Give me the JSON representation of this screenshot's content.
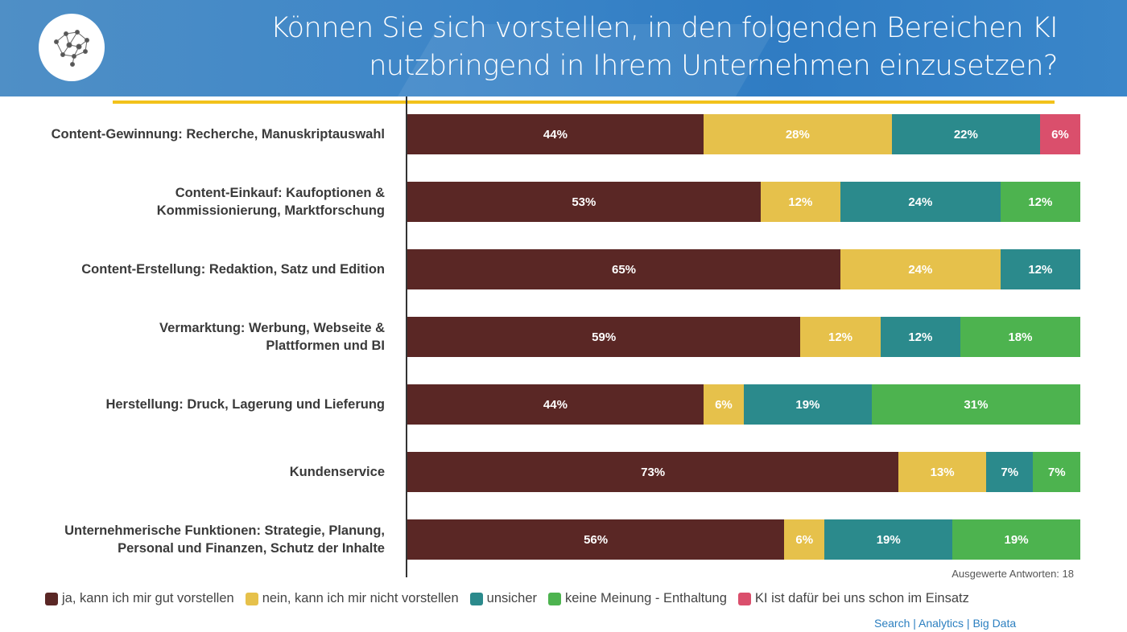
{
  "header": {
    "title_line1": "Können Sie sich vorstellen, in den folgenden Bereichen KI",
    "title_line2": "nutzbringend in Ihrem Unternehmen einzusetzen?",
    "logo": "brain-network-logo"
  },
  "chart_data": {
    "type": "bar",
    "orientation": "horizontal-stacked-100",
    "title": "Können Sie sich vorstellen, in den folgenden Bereichen KI nutzbringend in Ihrem Unternehmen einzusetzen?",
    "categories": [
      [
        "Content-Gewinnung: Recherche, Manuskriptauswahl"
      ],
      [
        "Content-Einkauf: Kaufoptionen &",
        "Kommissionierung, Marktforschung"
      ],
      [
        "Content-Erstellung: Redaktion, Satz und Edition"
      ],
      [
        "Vermarktung: Werbung, Webseite &",
        "Plattformen und BI"
      ],
      [
        "Herstellung: Druck, Lagerung und Lieferung"
      ],
      [
        "Kundenservice"
      ],
      [
        "Unternehmerische Funktionen: Strategie, Planung,",
        "Personal und Finanzen, Schutz der Inhalte"
      ]
    ],
    "series": [
      {
        "name": "ja, kann ich mir gut vorstellen",
        "color": "#5a2725",
        "values": [
          44,
          53,
          65,
          59,
          44,
          73,
          56
        ]
      },
      {
        "name": "nein, kann ich mir nicht vorstellen",
        "color": "#e6c14b",
        "values": [
          28,
          12,
          24,
          12,
          6,
          13,
          6
        ]
      },
      {
        "name": "unsicher",
        "color": "#2b8a8c",
        "values": [
          22,
          24,
          12,
          12,
          19,
          7,
          19
        ]
      },
      {
        "name": "keine Meinung - Enthaltung",
        "color": "#4db34f",
        "values": [
          0,
          12,
          0,
          18,
          31,
          7,
          19
        ]
      },
      {
        "name": "KI ist dafür bei uns schon im Einsatz",
        "color": "#da4f6c",
        "values": [
          6,
          0,
          0,
          0,
          0,
          0,
          0
        ]
      }
    ],
    "unit": "%",
    "legend": "bottom",
    "grid": false
  },
  "responses": "Ausgewerte Antworten: 18",
  "footer": "Search | Analytics | Big Data"
}
